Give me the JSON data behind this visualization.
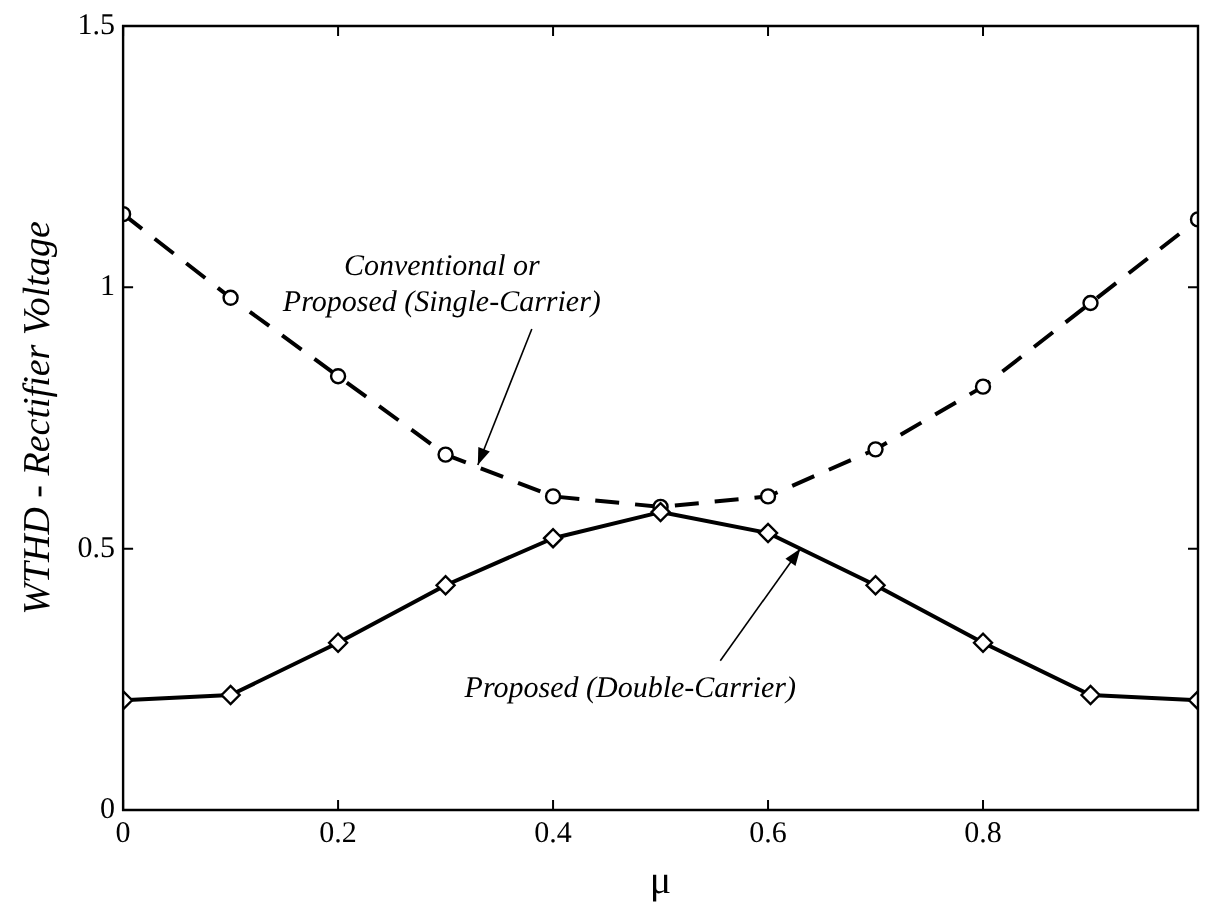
{
  "chart_data": {
    "type": "line",
    "xlabel": "μ",
    "ylabel": "WTHD - Rectifier Voltage",
    "x": [
      0,
      0.1,
      0.2,
      0.3,
      0.4,
      0.5,
      0.6,
      0.7,
      0.8,
      0.9,
      1.0
    ],
    "series": [
      {
        "color": "#000000",
        "line_style": "dashed",
        "marker": "circle",
        "values": [
          1.14,
          0.98,
          0.83,
          0.68,
          0.6,
          0.58,
          0.6,
          0.69,
          0.81,
          0.97,
          1.13
        ]
      },
      {
        "color": "#000000",
        "line_style": "solid",
        "marker": "diamond",
        "values": [
          0.21,
          0.22,
          0.32,
          0.43,
          0.52,
          0.57,
          0.53,
          0.43,
          0.32,
          0.22,
          0.21
        ]
      }
    ],
    "xlim": [
      0,
      1
    ],
    "xticks": [
      0,
      0.2,
      0.4,
      0.6,
      0.8
    ],
    "ylim": [
      0,
      1.5
    ],
    "yticks": [
      0,
      0.5,
      1,
      1.5
    ],
    "grid": false,
    "legend": false,
    "annotations": [
      {
        "text": "Conventional or\nProposed (Single-Carrier)",
        "x": 0.33,
        "y": 0.66
      },
      {
        "text": "Proposed (Double-Carrier)",
        "x": 0.63,
        "y": 0.5
      }
    ]
  }
}
